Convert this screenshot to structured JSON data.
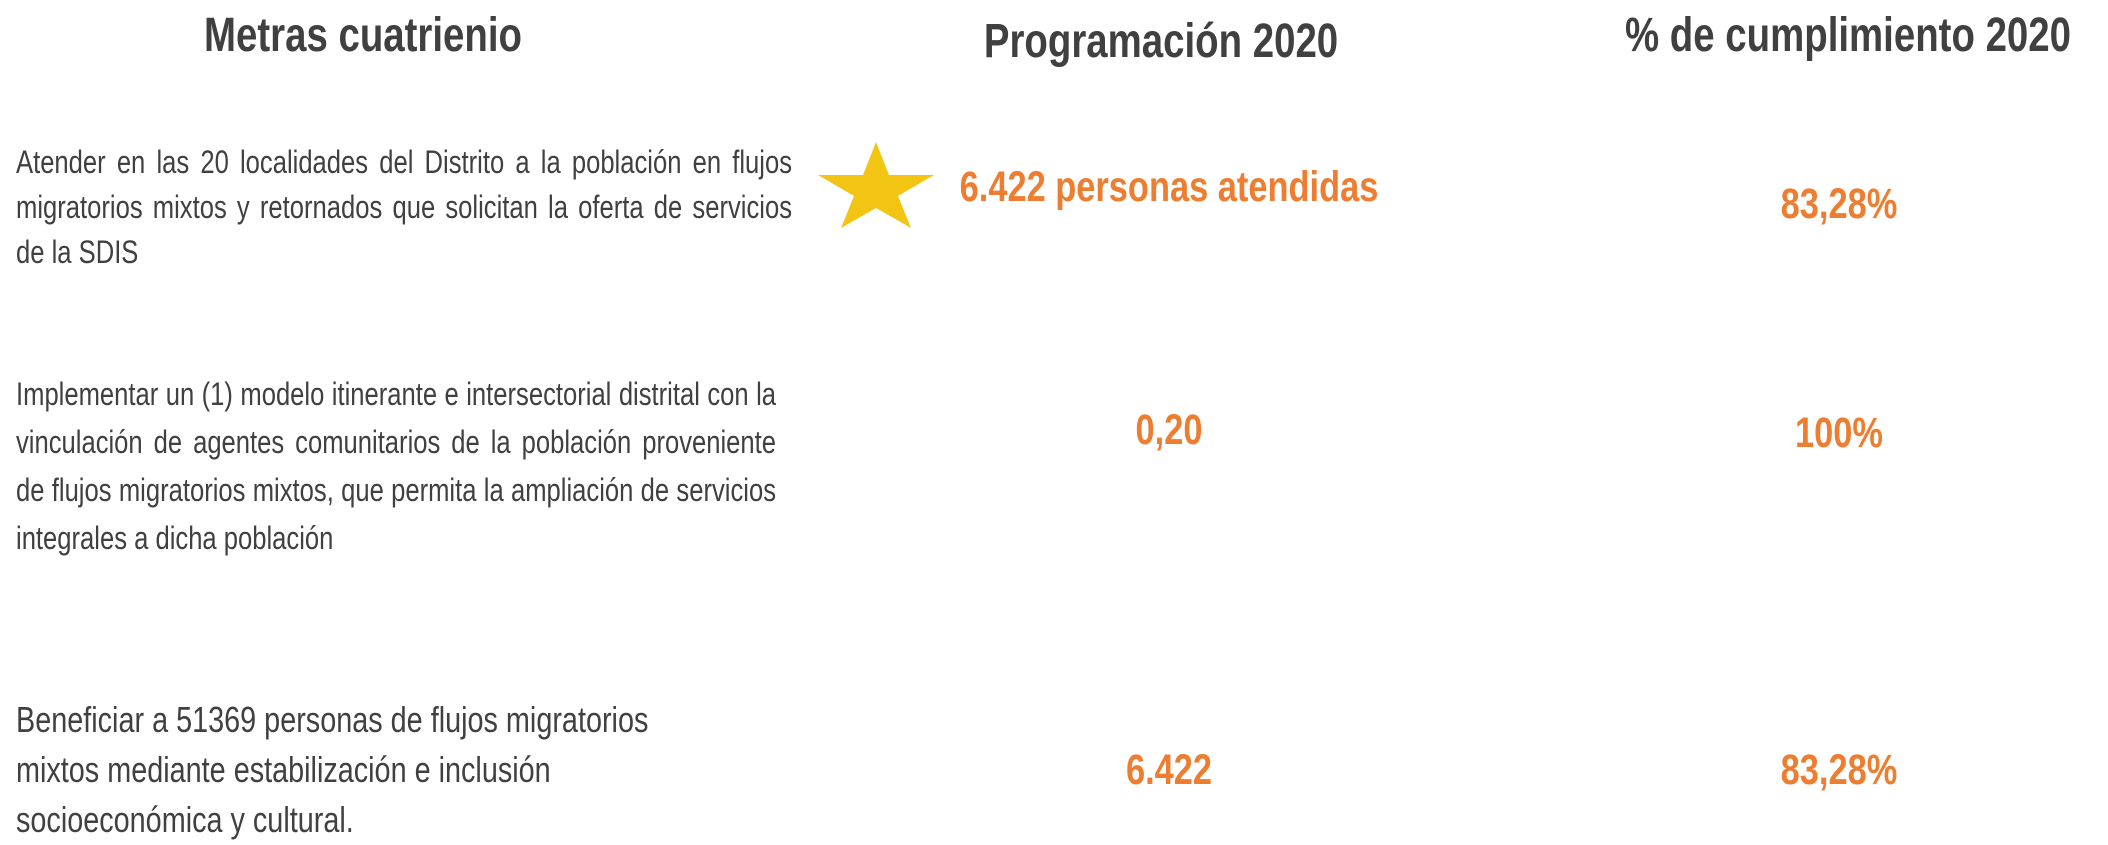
{
  "header": {
    "meta": "Metras cuatrienio",
    "programacion": "Programación 2020",
    "cumplimiento": "% de cumplimiento 2020"
  },
  "rows": [
    {
      "meta": "Atender en las 20 localidades del Distrito a la población en flujos migratorios mixtos y retornados que solicitan la oferta de servicios de la SDIS",
      "programacion": "6.422 personas atendidas",
      "cumplimiento": "83,28%"
    },
    {
      "meta": "Implementar un (1) modelo itinerante e intersectorial distrital con la vinculación de agentes comunitarios de la población proveniente de flujos migratorios mixtos, que permita la ampliación de servicios integrales a dicha población",
      "programacion": "0,20",
      "cumplimiento": "100%"
    },
    {
      "meta": "Beneficiar a 51369 personas de flujos migratorios mixtos mediante estabilización e inclusión socioeconómica y cultural.",
      "programacion": "6.422",
      "cumplimiento": "83,28%"
    }
  ]
}
